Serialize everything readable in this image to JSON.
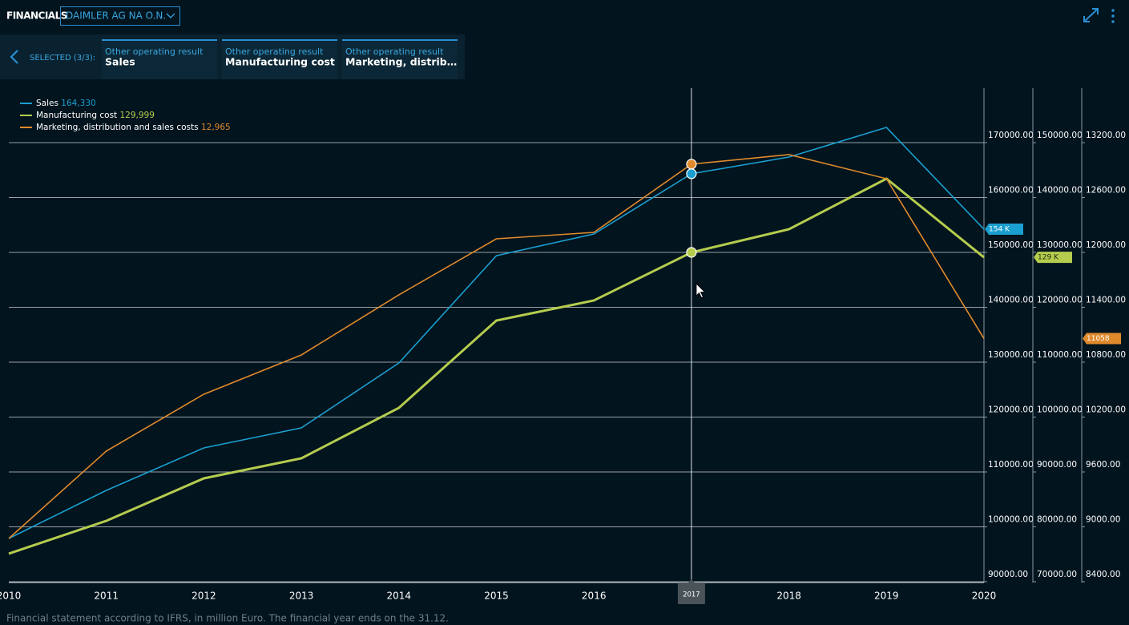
{
  "header": {
    "title": "FINANCIALS",
    "company": "DAIMLER AG NA O.N."
  },
  "selection": {
    "label": "SELECTED (3/3):",
    "tabs": [
      {
        "group": "Other operating result",
        "name": "Sales"
      },
      {
        "group": "Other operating result",
        "name": "Manufacturing cost"
      },
      {
        "group": "Other operating result",
        "name": "Marketing, distrib…"
      }
    ]
  },
  "footer": "Financial statement according to IFRS, in million Euro. The financial year ends on the 31.12.",
  "chart_data": {
    "type": "line",
    "categories": [
      "2010",
      "2011",
      "2012",
      "2013",
      "2014",
      "2015",
      "2016",
      "2017",
      "2018",
      "2019",
      "2020"
    ],
    "hovered": 7,
    "series": [
      {
        "name": "Sales",
        "color": "#1a9fd0",
        "axis": "y",
        "values": [
          97880,
          106640,
          114380,
          118030,
          129850,
          149410,
          153350,
          164330,
          167370,
          172770,
          154230
        ],
        "value_labels": [
          null,
          null,
          null,
          null,
          null,
          null,
          null,
          "164,330",
          null,
          null,
          "154 K"
        ]
      },
      {
        "name": "Manufacturing cost",
        "color": "#b5cc4e",
        "axis": "y2",
        "values": [
          75110,
          81090,
          88830,
          92480,
          101670,
          117590,
          121240,
          129999,
          134230,
          143430,
          129100
        ],
        "value_labels": [
          null,
          null,
          null,
          null,
          null,
          null,
          null,
          "129,999",
          null,
          null,
          "129 K"
        ]
      },
      {
        "name": "Marketing, distribution and sales costs",
        "color": "#e08a2c",
        "axis": "y3",
        "values": [
          8873,
          9828,
          10450,
          10879,
          11536,
          12149,
          12219,
          12965,
          13069,
          12806,
          11058
        ],
        "value_labels": [
          null,
          null,
          null,
          null,
          null,
          null,
          null,
          "12,965",
          null,
          null,
          null
        ]
      }
    ],
    "ylim": [
      89850,
      179930
    ],
    "yticks": [
      {
        "value": 90000,
        "label": "90000.00"
      },
      {
        "value": 100000,
        "label": "100000.00"
      },
      {
        "value": 110000,
        "label": "110000.00"
      },
      {
        "value": 120000,
        "label": "120000.00"
      },
      {
        "value": 130000,
        "label": "130000.00"
      },
      {
        "value": 140000,
        "label": "140000.00"
      },
      {
        "value": 150000,
        "label": "150000.00"
      },
      {
        "value": 160000,
        "label": "160000.00"
      },
      {
        "value": 170000,
        "label": "170000.00"
      }
    ],
    "y2lim": [
      69850,
      159930
    ],
    "y2ticks": [
      {
        "value": 70000,
        "label": "70000.00"
      },
      {
        "value": 80000,
        "label": "80000.00"
      },
      {
        "value": 90000,
        "label": "90000.00"
      },
      {
        "value": 100000,
        "label": "100000.00"
      },
      {
        "value": 110000,
        "label": "110000.00"
      },
      {
        "value": 120000,
        "label": "120000.00"
      },
      {
        "value": 130000,
        "label": "130000.00"
      },
      {
        "value": 140000,
        "label": "140000.00"
      },
      {
        "value": 150000,
        "label": "150000.00"
      }
    ],
    "y3lim": [
      8391,
      13796
    ],
    "y3ticks": [
      {
        "value": 8400,
        "label": "8400.00"
      },
      {
        "value": 9000,
        "label": "9000.00"
      },
      {
        "value": 9600,
        "label": "9600.00"
      },
      {
        "value": 10200,
        "label": "10200.00"
      },
      {
        "value": 10800,
        "label": "10800.00"
      },
      {
        "value": 11400,
        "label": "11400.00"
      },
      {
        "value": 12000,
        "label": "12000.00"
      },
      {
        "value": 12600,
        "label": "12600.00"
      },
      {
        "value": 13200,
        "label": "13200.00"
      }
    ],
    "grid": true,
    "legend": "upper left"
  }
}
